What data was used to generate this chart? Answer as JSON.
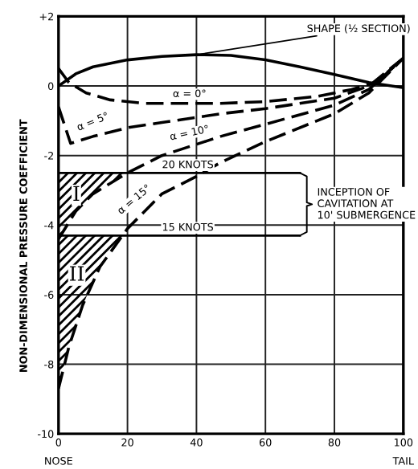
{
  "chart_data": {
    "type": "line",
    "ylabel": "NON-DIMENSIONAL PRESSURE COEFFICIENT",
    "xlim": [
      0,
      100
    ],
    "xticks": [
      0,
      20,
      40,
      60,
      80,
      100
    ],
    "ylim": [
      -10,
      2
    ],
    "yticks": [
      {
        "value": 2,
        "label": "+2"
      },
      0,
      -2,
      -4,
      -6,
      -8,
      -10
    ],
    "grid": true,
    "legend": false,
    "series": [
      {
        "name": "SHAPE (½ SECTION)",
        "color": "#000000",
        "line_style": "solid",
        "x": [
          0,
          5,
          10,
          20,
          30,
          40,
          50,
          60,
          70,
          80,
          90,
          100
        ],
        "values": [
          0,
          0.35,
          0.55,
          0.75,
          0.85,
          0.9,
          0.88,
          0.75,
          0.55,
          0.33,
          0.1,
          -0.05
        ]
      },
      {
        "name": "α = 0°",
        "color": "#000000",
        "line_style": "dashed",
        "x": [
          0,
          3,
          8,
          15,
          25,
          40,
          47,
          60,
          75,
          85,
          92,
          100
        ],
        "values": [
          0.5,
          0.1,
          -0.2,
          -0.4,
          -0.5,
          -0.5,
          -0.5,
          -0.45,
          -0.3,
          -0.1,
          0.1,
          0.8
        ]
      },
      {
        "name": "α = 5°",
        "color": "#000000",
        "line_style": "dashed",
        "x": [
          0,
          3.5,
          10,
          20,
          30,
          47,
          60,
          80,
          90,
          100
        ],
        "values": [
          -0.6,
          -1.65,
          -1.45,
          -1.2,
          -1.05,
          -0.8,
          -0.65,
          -0.35,
          0,
          0.8
        ]
      },
      {
        "name": "α = 10°",
        "color": "#000000",
        "line_style": "dashed",
        "x": [
          0,
          5,
          10,
          20,
          30,
          47,
          60,
          80,
          90,
          100
        ],
        "values": [
          -4.4,
          -3.6,
          -3.1,
          -2.5,
          -2.0,
          -1.45,
          -1.1,
          -0.55,
          -0.1,
          0.8
        ]
      },
      {
        "name": "α = 15°",
        "color": "#000000",
        "line_style": "dashed",
        "x": [
          0,
          3,
          7,
          12,
          20,
          30,
          40,
          47,
          60,
          80,
          90,
          100
        ],
        "values": [
          -8.7,
          -7.5,
          -6.3,
          -5.2,
          -4.1,
          -3.1,
          -2.6,
          -2.2,
          -1.6,
          -0.8,
          -0.2,
          0.8
        ]
      }
    ],
    "ref_lines": [
      {
        "axis": "y",
        "value": -2.5,
        "label": "20 KNOTS",
        "color": "#000000"
      },
      {
        "axis": "y",
        "value": -4.3,
        "label": "15 KNOTS",
        "color": "#000000"
      }
    ],
    "annotations": [
      "I",
      "II",
      "INCEPTION OF\nCAVITATION AT\n10' SUBMERGENCE",
      "NOSE",
      "TAIL"
    ]
  }
}
